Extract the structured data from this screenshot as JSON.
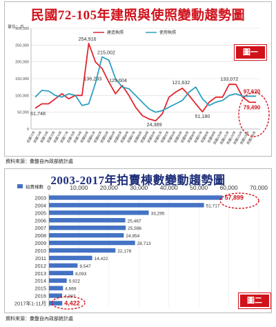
{
  "top": {
    "title": "民國72-105年建照與使照變動趨勢圖",
    "unit": "單位：戶",
    "badge": "圖一",
    "source": "資料來源：彙整自內政部統計處"
  },
  "bottom": {
    "title": "2003-2017年拍賣棟數變動趨勢圖",
    "badge": "圖二",
    "source": "資料來源：彙整自內政部統計處"
  },
  "colors": {
    "build": "#e0242b",
    "use": "#2b9fbf",
    "bar": "#4472c4",
    "highlight": "#d0121b",
    "title_blue": "#1f2f7a"
  },
  "chart_data": [
    {
      "type": "line",
      "title": "民國72-105年建照與使照變動趨勢圖",
      "ylabel": "單位：戶",
      "ylim": [
        0,
        300000
      ],
      "yticks": [
        "0",
        "50,000",
        "100,000",
        "150,000",
        "200,000",
        "250,000",
        "300,000"
      ],
      "grid": true,
      "legend": "top",
      "x": [
        "民國72年",
        "民國73年",
        "民國74年",
        "民國75年",
        "民國76年",
        "民國77年",
        "民國78年",
        "民國79年",
        "民國80年",
        "民國81年",
        "民國82年",
        "民國83年",
        "民國84年",
        "民國85年",
        "民國86年",
        "民國87年",
        "民國88年",
        "民國89年",
        "民國90年",
        "民國91年",
        "民國92年",
        "民國93年",
        "民國94年",
        "民國95年",
        "民國96年",
        "民國97年",
        "民國98年",
        "民國99年",
        "民國100年",
        "民國101年",
        "民國102年",
        "民國103年",
        "民國104年",
        "民國105年"
      ],
      "series": [
        {
          "name": "建造執照",
          "color": "#e0242b",
          "values": [
            61748,
            75000,
            75000,
            90000,
            105000,
            90000,
            100000,
            100000,
            254916,
            200000,
            180000,
            140000,
            105000,
            129604,
            100000,
            65000,
            40000,
            30000,
            24389,
            45000,
            95000,
            110000,
            121632,
            100000,
            75000,
            51180,
            80000,
            95000,
            95000,
            133072,
            133000,
            95000,
            80000,
            79490
          ]
        },
        {
          "name": "使用執照",
          "color": "#2b9fbf",
          "values": [
            95000,
            115000,
            113000,
            100000,
            95000,
            105000,
            100000,
            70000,
            75000,
            136233,
            215002,
            205000,
            150000,
            125000,
            120000,
            100000,
            80000,
            60000,
            50000,
            55000,
            65000,
            75000,
            85000,
            110000,
            125000,
            90000,
            70000,
            80000,
            85000,
            100000,
            105000,
            97620,
            97620,
            97620
          ]
        }
      ],
      "labels": [
        "61,748",
        "136,233",
        "254,916",
        "215,002",
        "129,604",
        "24,389",
        "121,632",
        "51,180",
        "133,072",
        "97,620",
        "79,490"
      ]
    },
    {
      "type": "bar",
      "orientation": "horizontal",
      "title": "2003-2017年拍賣棟數變動趨勢圖",
      "legend": "拍賣棟數",
      "xlim": [
        0,
        70000
      ],
      "xticks": [
        "0",
        "10,000",
        "20,000",
        "30,000",
        "40,000",
        "50,000",
        "60,000",
        "70,000"
      ],
      "categories": [
        "2003",
        "2004",
        "2005",
        "2006",
        "2007",
        "2008",
        "2009",
        "2010",
        "2011",
        "2012",
        "2013",
        "2014",
        "2015",
        "2016",
        "2017年1-11月"
      ],
      "values": [
        57899,
        51717,
        33295,
        25467,
        25596,
        24954,
        28713,
        22178,
        14422,
        9547,
        8093,
        5922,
        4669,
        4387,
        4422
      ],
      "value_labels": [
        "57,899",
        "51,717",
        "33,295",
        "25,467",
        "25,596",
        "24,954",
        "28,713",
        "22,178",
        "14,422",
        "9,547",
        "8,093",
        "5,922",
        "4,669",
        "4,387",
        "4,422"
      ]
    }
  ]
}
